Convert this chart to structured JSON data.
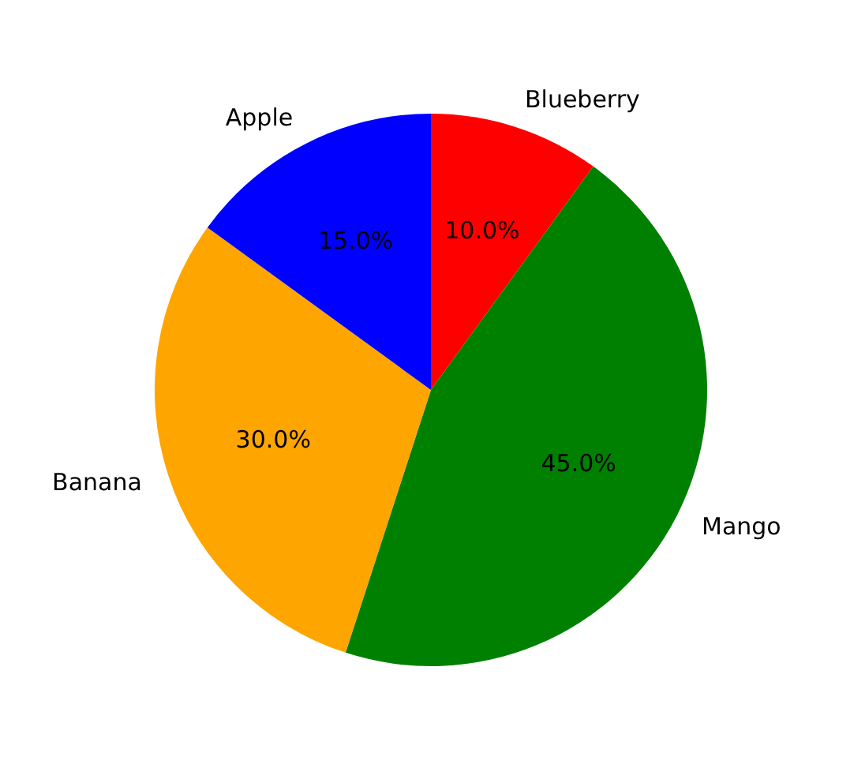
{
  "chart_data": {
    "type": "pie",
    "categories": [
      "Blueberry",
      "Mango",
      "Banana",
      "Apple"
    ],
    "values": [
      10,
      45,
      30,
      15
    ],
    "colors": [
      "#ff0000",
      "#008000",
      "#ffa500",
      "#0000ff"
    ],
    "value_labels": [
      "10.0%",
      "45.0%",
      "30.0%",
      "15.0%"
    ],
    "legend": false
  }
}
